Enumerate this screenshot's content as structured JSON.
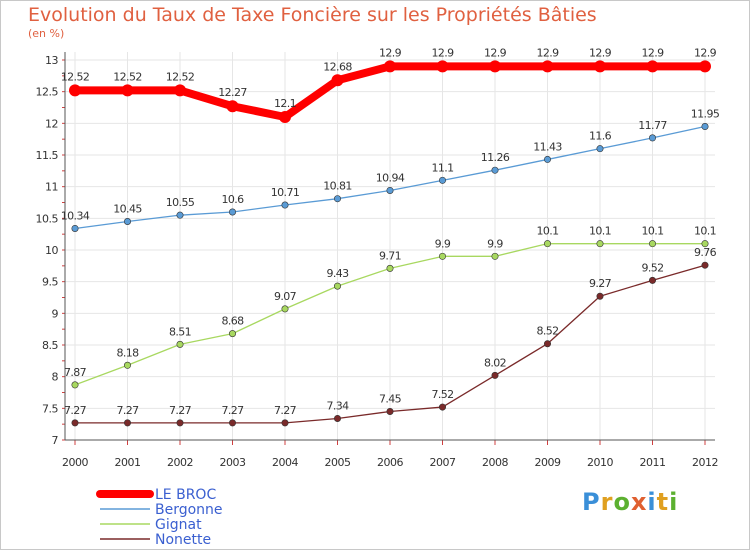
{
  "title": "Evolution du Taux de Taxe Foncière sur les Propriétés Bâties",
  "unit_label": "(en %)",
  "brand": "Proxiti",
  "chart_data": {
    "type": "line",
    "x": [
      "2000",
      "2001",
      "2002",
      "2003",
      "2004",
      "2005",
      "2006",
      "2007",
      "2008",
      "2009",
      "2010",
      "2011",
      "2012"
    ],
    "ylim": [
      7,
      13
    ],
    "yticks": [
      "7",
      "7.5",
      "8",
      "8.5",
      "9",
      "9.5",
      "10",
      "10.5",
      "11",
      "11.5",
      "12",
      "12.5",
      "13"
    ],
    "grid": true,
    "legend_position": "bottom-left",
    "series": [
      {
        "name": "LE BROC",
        "color": "#ff0000",
        "values": [
          12.52,
          12.52,
          12.52,
          12.27,
          12.1,
          12.68,
          12.9,
          12.9,
          12.9,
          12.9,
          12.9,
          12.9,
          12.9
        ],
        "labels": [
          "12.52",
          "12.52",
          "12.52",
          "12.27",
          "12.1",
          "12.68",
          "12.9",
          "12.9",
          "12.9",
          "12.9",
          "12.9",
          "12.9",
          "12.9"
        ]
      },
      {
        "name": "Bergonne",
        "color": "#5a9bd5",
        "values": [
          10.34,
          10.45,
          10.55,
          10.6,
          10.71,
          10.81,
          10.94,
          11.1,
          11.26,
          11.43,
          11.6,
          11.77,
          11.95
        ],
        "labels": [
          "10.34",
          "10.45",
          "10.55",
          "10.6",
          "10.71",
          "10.81",
          "10.94",
          "11.1",
          "11.26",
          "11.43",
          "11.6",
          "11.77",
          "11.95"
        ]
      },
      {
        "name": "Gignat",
        "color": "#a8d860",
        "values": [
          7.87,
          8.18,
          8.51,
          8.68,
          9.07,
          9.43,
          9.71,
          9.9,
          9.9,
          10.1,
          10.1,
          10.1,
          10.1
        ],
        "labels": [
          "7.87",
          "8.18",
          "8.51",
          "8.68",
          "9.07",
          "9.43",
          "9.71",
          "9.9",
          "9.9",
          "10.1",
          "10.1",
          "10.1",
          "10.1"
        ]
      },
      {
        "name": "Nonette",
        "color": "#7a2a2a",
        "values": [
          7.27,
          7.27,
          7.27,
          7.27,
          7.27,
          7.34,
          7.45,
          7.52,
          8.02,
          8.52,
          9.27,
          9.52,
          9.76
        ],
        "labels": [
          "7.27",
          "7.27",
          "7.27",
          "7.27",
          "7.27",
          "7.34",
          "7.45",
          "7.52",
          "8.02",
          "8.52",
          "9.27",
          "9.52",
          "9.76"
        ]
      }
    ]
  }
}
